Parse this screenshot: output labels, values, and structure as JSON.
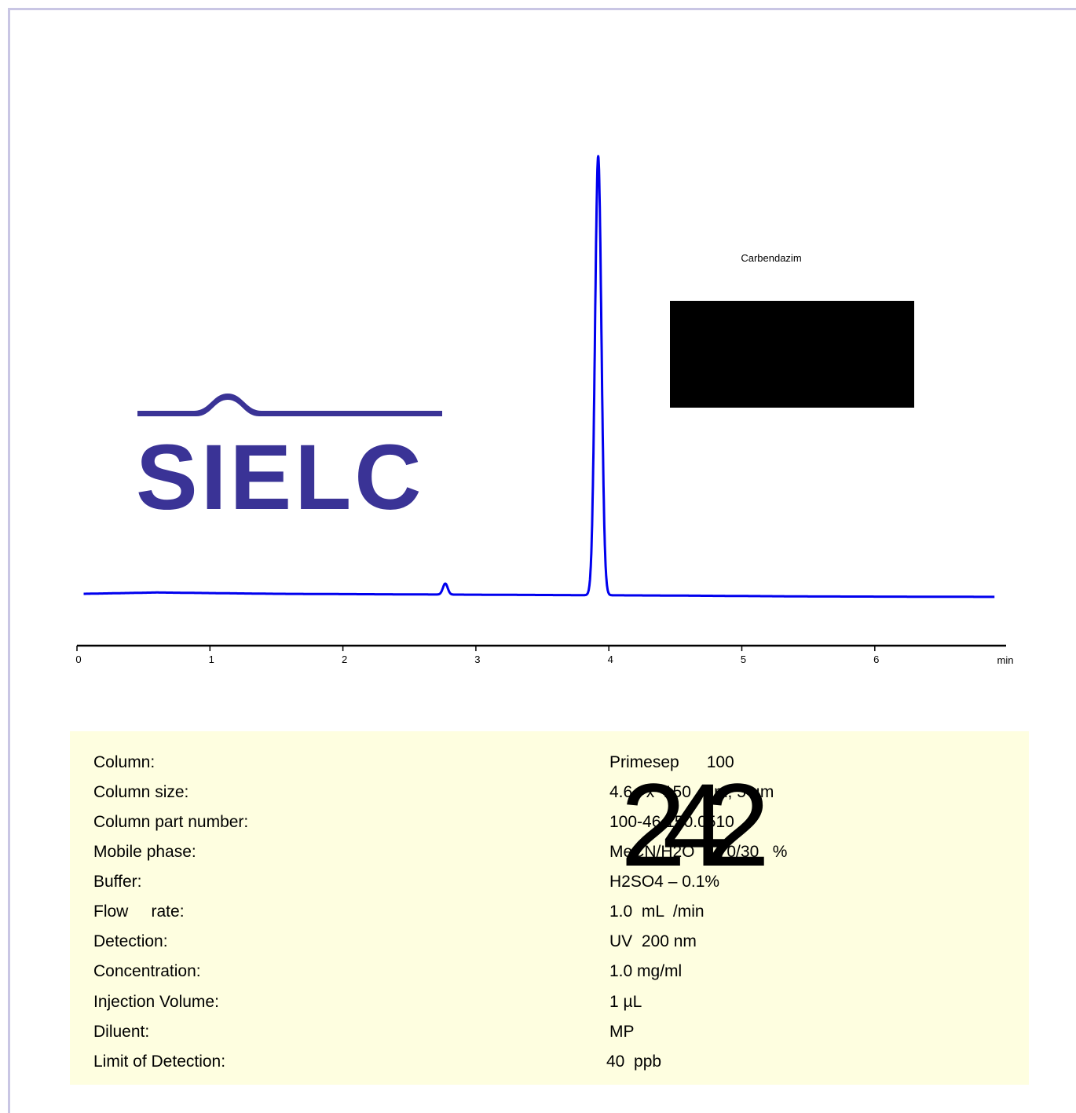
{
  "chart_data": {
    "type": "line",
    "title": "",
    "xlabel": "min",
    "ylabel": "",
    "xlim": [
      0,
      6.9
    ],
    "x_ticks": [
      0,
      1,
      2,
      3,
      4,
      5,
      6
    ],
    "x_tick_labels": [
      "0",
      "1",
      "2",
      "3",
      "4",
      "5",
      "6"
    ],
    "grid": false,
    "series": [
      {
        "color": "#0000ee",
        "baseline": [
          [
            0.05,
            0.0
          ],
          [
            0.6,
            0.003
          ],
          [
            1.5,
            0.0
          ],
          [
            3.0,
            -0.002
          ],
          [
            4.5,
            -0.004
          ],
          [
            5.5,
            -0.006
          ],
          [
            6.9,
            -0.007
          ]
        ],
        "peaks": [
          {
            "rt": 2.77,
            "height": 0.025,
            "sigma": 0.018
          },
          {
            "rt": 3.92,
            "height": 1.0,
            "sigma": 0.024
          }
        ]
      }
    ],
    "annotations": [
      {
        "text": "Carbendazim",
        "x": 3.92
      }
    ]
  },
  "logo": {
    "text": "SIELC",
    "color": "#3a3396"
  },
  "overlay_number": "242",
  "conditions": [
    {
      "label": "Column:",
      "value": "Primesep      100"
    },
    {
      "label": "Column size:",
      "value": "4.6   x  150  mm, 5 µm"
    },
    {
      "label": "Column part number:",
      "value": "100-46.150.0510"
    },
    {
      "label": "Mobile phase:",
      "value": "MeCN/H2O  – 70/30   %"
    },
    {
      "label": "Buffer:",
      "value": "H2SO4 – 0.1%"
    },
    {
      "label": "Flow     rate:",
      "value": "1.0  mL  /min"
    },
    {
      "label": "Detection:",
      "value": "UV  200 nm"
    },
    {
      "label": "Concentration:",
      "value": "1.0 mg/ml"
    },
    {
      "label": "Injection Volume:",
      "value": "1 µL"
    },
    {
      "label": "Diluent:",
      "value": "MP"
    },
    {
      "label": "Limit of Detection:",
      "value": "40  ppb"
    }
  ]
}
